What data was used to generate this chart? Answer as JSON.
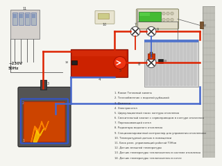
{
  "bg_color": "#f5f5f0",
  "pipe_red": "#dd2200",
  "pipe_blue": "#4466cc",
  "boiler_red": "#cc2200",
  "wall_gray": "#c0c0b8",
  "wall_dark": "#909088",
  "relay_bg": "#d0ccc8",
  "ctrl_bg": "#e8e4d0",
  "ctrl_green": "#55cc44",
  "radiator_fill": "#d8d8d8",
  "radiator_edge": "#aaaaaa",
  "firebox_body": "#585858",
  "firebox_inner": "#cc4400",
  "flame_orange": "#ff8800",
  "flame_yellow": "#ffcc00",
  "legend_items": [
    "1. Каман Тепловый камень",
    "2. Теплообменник с водяной рубашкой",
    "3. Дымоход",
    "4. Электрокотел",
    "5. Циркуляционный насос контуры отопления",
    "6. Смесительный клапан с сервоприводом в контуре отопления",
    "7. Перекачивающий котел",
    "8. Радиаторы водяного отопления",
    "9. Специализированный контроллер для управления отоплением",
    "10. Температурный датчик в помещении",
    "11. Блок реле, управляющий работой ТЭНов",
    "12. Датчик внешней температуры",
    "13. Датчик температуры теплоносителя в системе отопления",
    "14. Датчик температуры теплоносителя в котле"
  ]
}
